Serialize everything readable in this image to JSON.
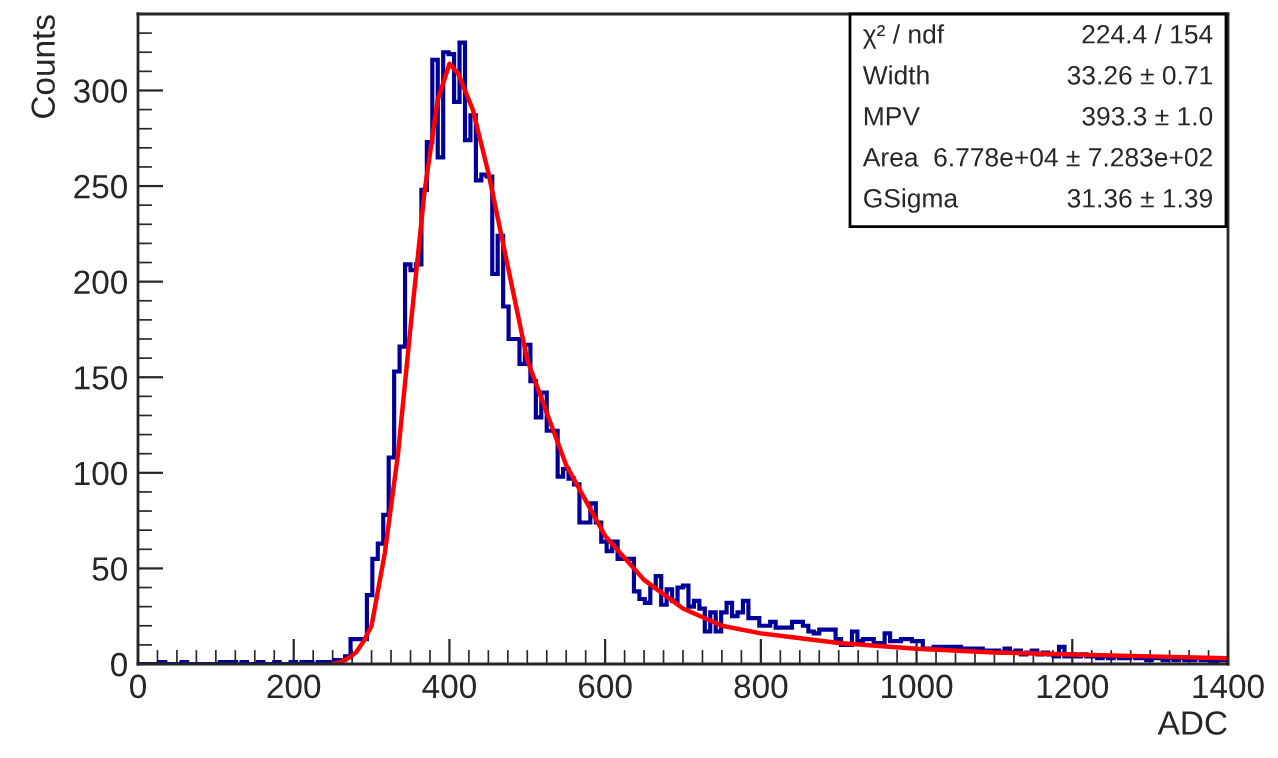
{
  "chart_data": {
    "type": "histogram",
    "xlabel": "ADC",
    "ylabel": "Counts",
    "bins": [
      0,
      7,
      14,
      21,
      28,
      35,
      42,
      49,
      56,
      63,
      70,
      77,
      84,
      91,
      98,
      105,
      112,
      119,
      126,
      133,
      140,
      147,
      154,
      161,
      168,
      175,
      182,
      189,
      196,
      203,
      210,
      217,
      224,
      231,
      238,
      245,
      252,
      259,
      266,
      273,
      280,
      287,
      294,
      301,
      308,
      315,
      322,
      329,
      336,
      343,
      350,
      357,
      364,
      371,
      378,
      385,
      392,
      399,
      406,
      413,
      420,
      427,
      434,
      441,
      448,
      455,
      462,
      469,
      476,
      483,
      490,
      497,
      504,
      511,
      518,
      525,
      532,
      539,
      546,
      553,
      560,
      567,
      574,
      581,
      588,
      595,
      602,
      609,
      616,
      623,
      630,
      637,
      644,
      651,
      658,
      665,
      672,
      679,
      686,
      693,
      700,
      707,
      714,
      721,
      728,
      735,
      742,
      749,
      756,
      763,
      770,
      777,
      784,
      791,
      798,
      805,
      812,
      819,
      826,
      833,
      840,
      847,
      854,
      861,
      868,
      875,
      882,
      889,
      896,
      903,
      910,
      917,
      924,
      931,
      938,
      945,
      952,
      959,
      966,
      973,
      980,
      987,
      994,
      1001,
      1008,
      1015,
      1022,
      1029,
      1036,
      1043,
      1050,
      1057,
      1064,
      1071,
      1078,
      1085,
      1092,
      1099,
      1106,
      1113,
      1120,
      1127,
      1134,
      1141,
      1148,
      1155,
      1162,
      1169,
      1176,
      1183,
      1190,
      1197,
      1204,
      1211,
      1218,
      1225,
      1232,
      1239,
      1246,
      1253,
      1260,
      1267,
      1274,
      1281,
      1288,
      1295,
      1302,
      1309,
      1316,
      1323,
      1330,
      1337,
      1344,
      1351,
      1358,
      1365,
      1372,
      1379,
      1386,
      1393,
      1400
    ],
    "series": [
      {
        "color": "#000099",
        "values": [
          0,
          0,
          0,
          0,
          1,
          0,
          0,
          0,
          1,
          0,
          0,
          0,
          0,
          0,
          0,
          1,
          1,
          1,
          0,
          1,
          0,
          0,
          1,
          0,
          0,
          1,
          0,
          0,
          1,
          0,
          1,
          1,
          0,
          1,
          1,
          1,
          2,
          2,
          4,
          13,
          13,
          13,
          36,
          55,
          63,
          78,
          108,
          153,
          166,
          209,
          206,
          209,
          248,
          273,
          316,
          265,
          320,
          319,
          294,
          325,
          274,
          287,
          253,
          256,
          255,
          204,
          224,
          187,
          170,
          170,
          157,
          167,
          148,
          129,
          142,
          122,
          122,
          98,
          102,
          97,
          94,
          74,
          74,
          84,
          74,
          64,
          59,
          64,
          55,
          55,
          55,
          38,
          34,
          32,
          40,
          46,
          31,
          39,
          33,
          40,
          41,
          30,
          33,
          29,
          17,
          27,
          17,
          27,
          32,
          25,
          27,
          33,
          24,
          24,
          20,
          20,
          22,
          19,
          19,
          19,
          22,
          22,
          20,
          17,
          16,
          18,
          18,
          18,
          13,
          10,
          10,
          17,
          12,
          13,
          13,
          11,
          11,
          16,
          12,
          12,
          13,
          13,
          12,
          12,
          8,
          8,
          9,
          9,
          9,
          9,
          9,
          8,
          8,
          8,
          8,
          7,
          7,
          7,
          6,
          8,
          6,
          7,
          5,
          6,
          7,
          5,
          6,
          5,
          4,
          9,
          4,
          5,
          4,
          5,
          4,
          4,
          3,
          4,
          3,
          4,
          3,
          3,
          4,
          3,
          3,
          2,
          3,
          3,
          2,
          3,
          2,
          3,
          2,
          2,
          3,
          2,
          2,
          1,
          2,
          2
        ]
      },
      {
        "type": "line",
        "color": "#ff0000",
        "x": [
          250,
          260,
          270,
          280,
          290,
          300,
          317,
          334,
          351,
          368,
          385,
          400,
          411,
          430,
          450,
          500,
          550,
          600,
          650,
          700,
          750,
          800,
          900,
          1000,
          1100,
          1200,
          1300,
          1400
        ],
        "values": [
          0,
          1,
          3,
          6,
          12,
          20,
          58,
          110,
          180,
          247,
          295,
          314,
          309,
          290,
          257,
          159,
          104,
          67,
          44,
          29,
          20,
          16,
          11,
          8,
          6,
          5,
          4,
          3
        ]
      }
    ],
    "xlim": [
      0,
      1400
    ],
    "xticks": [
      0,
      200,
      400,
      600,
      800,
      1000,
      1200,
      1400
    ],
    "ylim": [
      0,
      340
    ],
    "yticks": [
      0,
      50,
      100,
      150,
      200,
      250,
      300
    ],
    "grid": false,
    "legend": false,
    "annotations": [
      "χ² / ndf",
      "224.4 / 154",
      "Width",
      "33.26 ± 0.71",
      "MPV",
      "393.3 ± 1.0",
      "Area",
      "6.778e+04 ± 7.283e+02",
      "GSigma",
      "31.36 ± 1.39"
    ]
  }
}
